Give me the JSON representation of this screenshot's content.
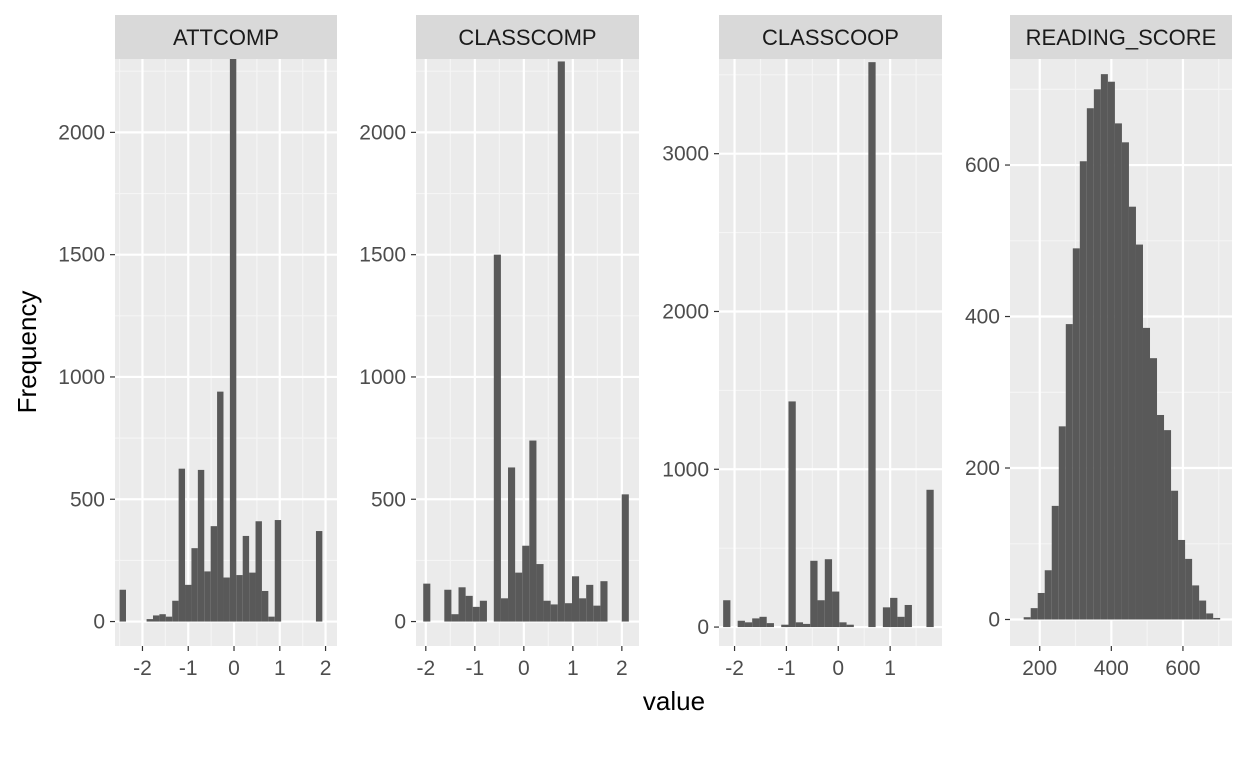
{
  "chart_data": {
    "type": "histogram",
    "ylabel": "Frequency",
    "xlabel": "value",
    "facet_scales": "free",
    "grid": true,
    "colors": {
      "bar": "#595959",
      "panel_background": "#ebebeb",
      "strip_background": "#d9d9d9",
      "grid_major": "#ffffff",
      "grid_minor": "#f5f5f5"
    },
    "panels": [
      {
        "title": "ATTCOMP",
        "xlim": [
          -2.6,
          2.25
        ],
        "ylim": [
          -100,
          2300
        ],
        "x_ticks": [
          -2,
          -1,
          0,
          1,
          2
        ],
        "x_tick_labels": [
          "-2",
          "-1",
          "0",
          "1",
          "2"
        ],
        "y_ticks": [
          0,
          500,
          1000,
          1500,
          2000
        ],
        "y_tick_labels": [
          "0",
          "500",
          "1000",
          "1500",
          "2000"
        ],
        "bin_width": 0.14,
        "bins": [
          {
            "x": -2.43,
            "count": 130
          },
          {
            "x": -1.84,
            "count": 10
          },
          {
            "x": -1.7,
            "count": 25
          },
          {
            "x": -1.56,
            "count": 30
          },
          {
            "x": -1.42,
            "count": 20
          },
          {
            "x": -1.28,
            "count": 85
          },
          {
            "x": -1.14,
            "count": 625
          },
          {
            "x": -1.0,
            "count": 150
          },
          {
            "x": -0.86,
            "count": 300
          },
          {
            "x": -0.72,
            "count": 620
          },
          {
            "x": -0.58,
            "count": 205
          },
          {
            "x": -0.44,
            "count": 390
          },
          {
            "x": -0.3,
            "count": 940
          },
          {
            "x": -0.16,
            "count": 180
          },
          {
            "x": -0.02,
            "count": 2300
          },
          {
            "x": 0.12,
            "count": 190
          },
          {
            "x": 0.26,
            "count": 350
          },
          {
            "x": 0.4,
            "count": 200
          },
          {
            "x": 0.54,
            "count": 410
          },
          {
            "x": 0.68,
            "count": 125
          },
          {
            "x": 0.82,
            "count": 20
          },
          {
            "x": 0.96,
            "count": 415
          },
          {
            "x": 1.86,
            "count": 370
          }
        ]
      },
      {
        "title": "CLASSCOMP",
        "xlim": [
          -2.2,
          2.35
        ],
        "ylim": [
          -100,
          2300
        ],
        "x_ticks": [
          -2,
          -1,
          0,
          1,
          2
        ],
        "x_tick_labels": [
          "-2",
          "-1",
          "0",
          "1",
          "2"
        ],
        "y_ticks": [
          0,
          500,
          1000,
          1500,
          2000
        ],
        "y_tick_labels": [
          "0",
          "500",
          "1000",
          "1500",
          "2000"
        ],
        "bin_width": 0.145,
        "bins": [
          {
            "x": -1.98,
            "count": 155
          },
          {
            "x": -1.55,
            "count": 130
          },
          {
            "x": -1.405,
            "count": 30
          },
          {
            "x": -1.26,
            "count": 140
          },
          {
            "x": -1.115,
            "count": 105
          },
          {
            "x": -0.97,
            "count": 60
          },
          {
            "x": -0.825,
            "count": 85
          },
          {
            "x": -0.54,
            "count": 1500
          },
          {
            "x": -0.395,
            "count": 95
          },
          {
            "x": -0.25,
            "count": 630
          },
          {
            "x": -0.105,
            "count": 200
          },
          {
            "x": 0.04,
            "count": 310
          },
          {
            "x": 0.185,
            "count": 740
          },
          {
            "x": 0.33,
            "count": 235
          },
          {
            "x": 0.475,
            "count": 85
          },
          {
            "x": 0.62,
            "count": 70
          },
          {
            "x": 0.765,
            "count": 2290
          },
          {
            "x": 0.91,
            "count": 75
          },
          {
            "x": 1.055,
            "count": 185
          },
          {
            "x": 1.2,
            "count": 95
          },
          {
            "x": 1.345,
            "count": 150
          },
          {
            "x": 1.49,
            "count": 65
          },
          {
            "x": 1.635,
            "count": 165
          },
          {
            "x": 2.07,
            "count": 520
          }
        ]
      },
      {
        "title": "CLASSCOOP",
        "xlim": [
          -2.3,
          2.0
        ],
        "ylim": [
          -120,
          3600
        ],
        "x_ticks": [
          -2,
          -1,
          0,
          1
        ],
        "x_tick_labels": [
          "-2",
          "-1",
          "0",
          "1"
        ],
        "y_ticks": [
          0,
          1000,
          2000,
          3000
        ],
        "y_tick_labels": [
          "0",
          "1000",
          "2000",
          "3000"
        ],
        "bin_width": 0.14,
        "bins": [
          {
            "x": -2.15,
            "count": 170
          },
          {
            "x": -1.87,
            "count": 40
          },
          {
            "x": -1.73,
            "count": 30
          },
          {
            "x": -1.59,
            "count": 55
          },
          {
            "x": -1.45,
            "count": 65
          },
          {
            "x": -1.31,
            "count": 25
          },
          {
            "x": -1.03,
            "count": 15
          },
          {
            "x": -0.89,
            "count": 1430
          },
          {
            "x": -0.75,
            "count": 30
          },
          {
            "x": -0.61,
            "count": 20
          },
          {
            "x": -0.47,
            "count": 420
          },
          {
            "x": -0.33,
            "count": 170
          },
          {
            "x": -0.19,
            "count": 430
          },
          {
            "x": -0.05,
            "count": 225
          },
          {
            "x": 0.09,
            "count": 30
          },
          {
            "x": 0.23,
            "count": 15
          },
          {
            "x": 0.65,
            "count": 3580
          },
          {
            "x": 0.93,
            "count": 125
          },
          {
            "x": 1.07,
            "count": 185
          },
          {
            "x": 1.21,
            "count": 65
          },
          {
            "x": 1.35,
            "count": 140
          },
          {
            "x": 1.77,
            "count": 870
          }
        ]
      },
      {
        "title": "READING_SCORE",
        "xlim": [
          117,
          737
        ],
        "ylim": [
          -35,
          740
        ],
        "x_ticks": [
          200,
          400,
          600
        ],
        "x_tick_labels": [
          "200",
          "400",
          "600"
        ],
        "y_ticks": [
          0,
          200,
          400,
          600
        ],
        "y_tick_labels": [
          "0",
          "200",
          "400",
          "600"
        ],
        "bin_width": 19.6,
        "bins": [
          {
            "x": 165,
            "count": 3
          },
          {
            "x": 184.6,
            "count": 15
          },
          {
            "x": 204.2,
            "count": 35
          },
          {
            "x": 223.8,
            "count": 65
          },
          {
            "x": 243.4,
            "count": 150
          },
          {
            "x": 263.0,
            "count": 255
          },
          {
            "x": 282.6,
            "count": 390
          },
          {
            "x": 302.2,
            "count": 490
          },
          {
            "x": 321.8,
            "count": 605
          },
          {
            "x": 341.4,
            "count": 675
          },
          {
            "x": 361.0,
            "count": 700
          },
          {
            "x": 380.6,
            "count": 720
          },
          {
            "x": 400.2,
            "count": 710
          },
          {
            "x": 419.8,
            "count": 655
          },
          {
            "x": 439.4,
            "count": 630
          },
          {
            "x": 459.0,
            "count": 545
          },
          {
            "x": 478.6,
            "count": 495
          },
          {
            "x": 498.2,
            "count": 385
          },
          {
            "x": 517.8,
            "count": 345
          },
          {
            "x": 537.4,
            "count": 270
          },
          {
            "x": 557.0,
            "count": 250
          },
          {
            "x": 576.6,
            "count": 170
          },
          {
            "x": 596.2,
            "count": 105
          },
          {
            "x": 615.8,
            "count": 80
          },
          {
            "x": 635.4,
            "count": 45
          },
          {
            "x": 655.0,
            "count": 25
          },
          {
            "x": 674.6,
            "count": 8
          },
          {
            "x": 694.2,
            "count": 2
          }
        ]
      }
    ]
  }
}
